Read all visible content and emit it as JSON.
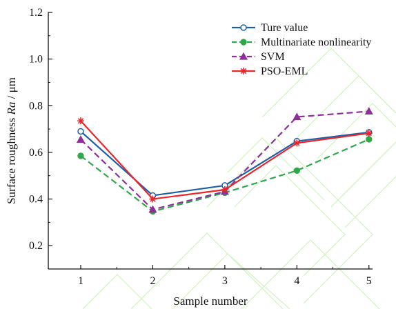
{
  "chart_data": {
    "type": "line",
    "xlabel": "Sample number",
    "ylabel_prefix": "Surface roughness ",
    "ylabel_italic": "Ra",
    "ylabel_suffix": " / μm",
    "x": [
      1,
      2,
      3,
      4,
      5
    ],
    "xtick_labels": [
      "1",
      "2",
      "3",
      "4",
      "5"
    ],
    "xlim": [
      0.55,
      5.05
    ],
    "ylim": [
      0.1,
      1.2
    ],
    "yticks": [
      0.2,
      0.4,
      0.6,
      0.8,
      1.0,
      1.2
    ],
    "ytick_labels": [
      "0.2",
      "0.4",
      "0.6",
      "0.8",
      "1.0",
      "1.2"
    ],
    "grid": false,
    "legend_position": "top-right",
    "series": [
      {
        "name": "Ture value",
        "values": [
          0.69,
          0.415,
          0.458,
          0.648,
          0.686
        ],
        "color": "#1f5fa8",
        "dash": "solid",
        "marker": "open-circle"
      },
      {
        "name": "Multinariate nonlinearity",
        "values": [
          0.585,
          0.347,
          0.427,
          0.522,
          0.656
        ],
        "color": "#2ea84a",
        "dash": "dashed",
        "marker": "filled-circle"
      },
      {
        "name": "SVM",
        "values": [
          0.655,
          0.355,
          0.432,
          0.752,
          0.776
        ],
        "color": "#8e2f9c",
        "dash": "dashed",
        "marker": "triangle"
      },
      {
        "name": "PSO-EML",
        "values": [
          0.735,
          0.4,
          0.44,
          0.64,
          0.682
        ],
        "color": "#e8262b",
        "dash": "solid",
        "marker": "star"
      }
    ]
  }
}
